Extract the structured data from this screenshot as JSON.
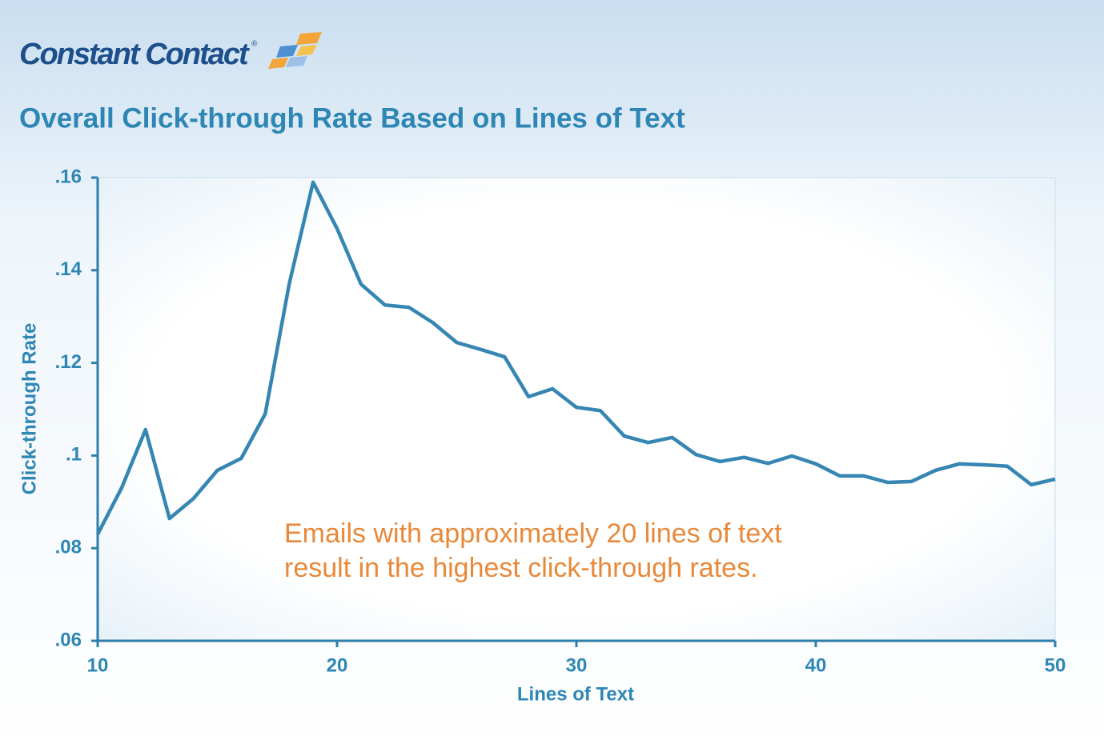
{
  "logo": "Constant Contact",
  "logo_registered": "®",
  "chart_data": {
    "type": "line",
    "title": "Overall Click-through Rate Based on Lines of Text",
    "x_label": "Lines of Text",
    "y_label": "Click-through Rate",
    "annotation": [
      "Emails with approximately 20 lines of text",
      "result in the highest click-through rates."
    ],
    "x": [
      10,
      11,
      12,
      13,
      14,
      15,
      16,
      17,
      18,
      19,
      20,
      21,
      22,
      23,
      24,
      25,
      26,
      27,
      28,
      29,
      30,
      31,
      32,
      33,
      34,
      35,
      36,
      37,
      38,
      39,
      40,
      41,
      42,
      43,
      44,
      45,
      46,
      47,
      48,
      49,
      50
    ],
    "values": [
      0.083,
      0.093,
      0.1056,
      0.0864,
      0.0907,
      0.0968,
      0.0994,
      0.109,
      0.137,
      0.159,
      0.149,
      0.137,
      0.1325,
      0.132,
      0.1287,
      0.1244,
      0.1229,
      0.1213,
      0.1127,
      0.1144,
      0.1104,
      0.1097,
      0.1042,
      0.1028,
      0.1039,
      0.1002,
      0.0987,
      0.0996,
      0.0983,
      0.0999,
      0.0982,
      0.0956,
      0.0956,
      0.0942,
      0.0944,
      0.0968,
      0.0982,
      0.098,
      0.0977,
      0.0937,
      0.0949
    ],
    "color": "#3686b3",
    "xlim": [
      10,
      50
    ],
    "xticks": [
      10,
      20,
      30,
      40,
      50
    ],
    "ylim": [
      0.06,
      0.16
    ],
    "yticks": [
      {
        "value": 0.06,
        "label": ".06"
      },
      {
        "value": 0.08,
        "label": ".08"
      },
      {
        "value": 0.1,
        "label": ".1"
      },
      {
        "value": 0.12,
        "label": ".12"
      },
      {
        "value": 0.14,
        "label": ".14"
      },
      {
        "value": 0.16,
        "label": ".16"
      }
    ],
    "grid": false
  }
}
